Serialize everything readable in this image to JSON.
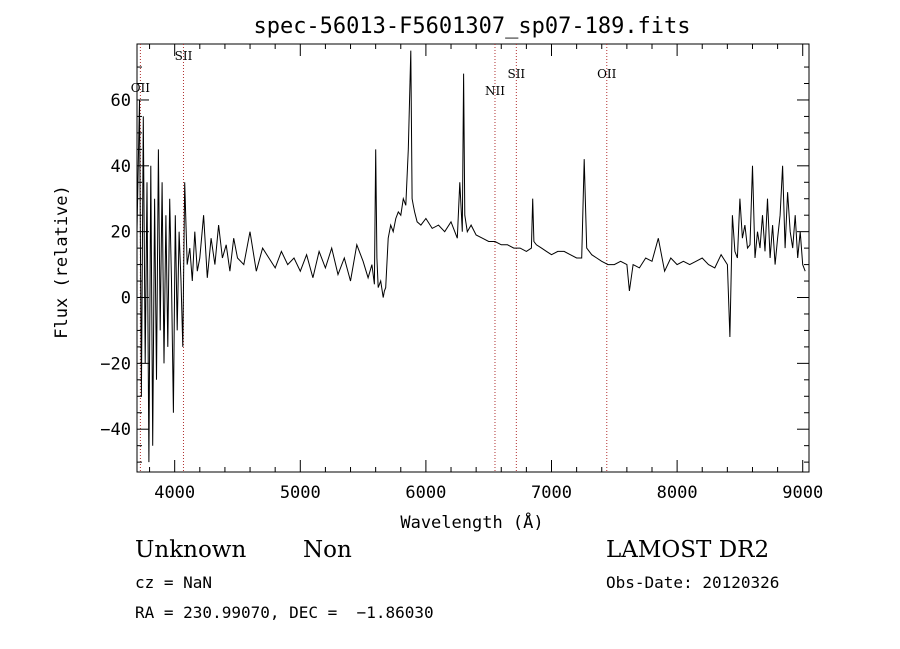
{
  "chart_data": {
    "type": "line",
    "title": "spec-56013-F5601307_sp07-189.fits",
    "xlabel": "Wavelength (Å)",
    "ylabel": "Flux (relative)",
    "xlim": [
      3700,
      9050
    ],
    "ylim": [
      -53,
      77
    ],
    "x_ticks": [
      4000,
      5000,
      6000,
      7000,
      8000,
      9000
    ],
    "y_ticks": [
      -40,
      -20,
      0,
      20,
      40,
      60
    ],
    "x_tick_labels": [
      "4000",
      "5000",
      "6000",
      "7000",
      "8000",
      "9000"
    ],
    "y_tick_labels": [
      "−40",
      "−20",
      "0",
      "20",
      "40",
      "60"
    ],
    "grid": false,
    "series": [
      {
        "x": [
          3700,
          3720,
          3735,
          3750,
          3765,
          3780,
          3795,
          3810,
          3825,
          3840,
          3855,
          3870,
          3885,
          3900,
          3915,
          3930,
          3945,
          3960,
          3975,
          3990,
          4005,
          4020,
          4035,
          4050,
          4065,
          4080,
          4100,
          4120,
          4140,
          4160,
          4180,
          4200,
          4230,
          4260,
          4290,
          4320,
          4350,
          4380,
          4410,
          4440,
          4470,
          4500,
          4550,
          4600,
          4650,
          4700,
          4750,
          4800,
          4850,
          4900,
          4950,
          5000,
          5050,
          5100,
          5150,
          5200,
          5250,
          5300,
          5350,
          5400,
          5450,
          5500,
          5540,
          5570,
          5590,
          5600,
          5610,
          5620,
          5640,
          5660,
          5670,
          5680,
          5700,
          5720,
          5740,
          5760,
          5780,
          5800,
          5820,
          5840,
          5860,
          5880,
          5890,
          5900,
          5910,
          5930,
          5960,
          6000,
          6050,
          6100,
          6150,
          6200,
          6250,
          6270,
          6290,
          6300,
          6310,
          6330,
          6360,
          6400,
          6450,
          6500,
          6550,
          6600,
          6650,
          6700,
          6750,
          6800,
          6840,
          6850,
          6860,
          6880,
          6920,
          6960,
          7000,
          7050,
          7100,
          7150,
          7200,
          7240,
          7260,
          7280,
          7320,
          7360,
          7400,
          7450,
          7500,
          7550,
          7600,
          7620,
          7650,
          7700,
          7750,
          7800,
          7850,
          7900,
          7950,
          8000,
          8050,
          8100,
          8150,
          8200,
          8250,
          8300,
          8350,
          8400,
          8420,
          8440,
          8460,
          8480,
          8500,
          8520,
          8540,
          8560,
          8580,
          8600,
          8620,
          8640,
          8660,
          8680,
          8700,
          8720,
          8740,
          8760,
          8780,
          8800,
          8820,
          8840,
          8860,
          8880,
          8900,
          8920,
          8940,
          8960,
          8980,
          9000,
          9020
        ],
        "y": [
          20,
          60,
          -30,
          55,
          -20,
          35,
          -50,
          40,
          -45,
          30,
          -25,
          45,
          -10,
          35,
          -20,
          25,
          -15,
          30,
          5,
          -35,
          25,
          -10,
          20,
          5,
          -15,
          35,
          10,
          15,
          5,
          20,
          8,
          12,
          25,
          6,
          18,
          10,
          22,
          12,
          16,
          8,
          18,
          12,
          10,
          20,
          8,
          15,
          12,
          9,
          14,
          10,
          12,
          8,
          13,
          6,
          14,
          9,
          15,
          7,
          12,
          5,
          16,
          11,
          6,
          10,
          4,
          45,
          12,
          3,
          5,
          0,
          2,
          3,
          18,
          22,
          20,
          24,
          26,
          25,
          30,
          28,
          45,
          75,
          30,
          28,
          26,
          23,
          22,
          24,
          21,
          22,
          20,
          23,
          18,
          35,
          20,
          68,
          25,
          20,
          22,
          19,
          18,
          17,
          17,
          16,
          16,
          15,
          15,
          14,
          15,
          30,
          17,
          16,
          15,
          14,
          13,
          14,
          14,
          13,
          12,
          12,
          42,
          15,
          13,
          12,
          11,
          10,
          10,
          11,
          10,
          2,
          10,
          9,
          12,
          11,
          18,
          8,
          12,
          10,
          11,
          10,
          11,
          12,
          10,
          9,
          13,
          10,
          -12,
          25,
          14,
          12,
          30,
          18,
          22,
          15,
          16,
          40,
          12,
          20,
          15,
          25,
          14,
          30,
          12,
          22,
          10,
          18,
          25,
          40,
          15,
          32,
          20,
          15,
          25,
          12,
          20,
          10,
          8
        ]
      }
    ],
    "line_markers": [
      {
        "label": "OII",
        "x": 3727
      },
      {
        "label": "SII",
        "x": 4070
      },
      {
        "label": "NII",
        "x": 6550
      },
      {
        "label": "SII",
        "x": 6720
      },
      {
        "label": "OII",
        "x": 7440
      }
    ]
  },
  "info": {
    "class_label": "Unknown",
    "subclass_label": "Non",
    "cz": "cz = NaN",
    "coords": "RA = 230.99070, DEC =  −1.86030",
    "survey": "LAMOST DR2",
    "obs_date": "Obs-Date: 20120326"
  }
}
